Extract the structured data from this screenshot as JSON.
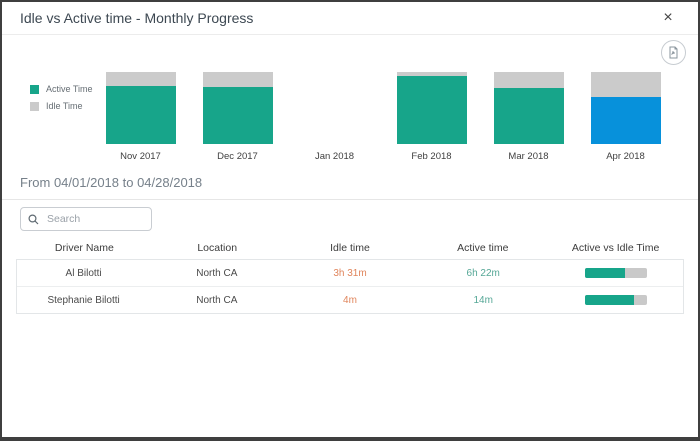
{
  "dialog": {
    "title": "Idle vs Active time - Monthly Progress",
    "close_label": "×"
  },
  "chart_data": {
    "type": "bar",
    "stacked": true,
    "unit": "percent",
    "categories": [
      "Nov 2017",
      "Dec 2017",
      "Jan 2018",
      "Feb 2018",
      "Mar 2018",
      "Apr 2018"
    ],
    "series": [
      {
        "name": "Active Time",
        "color": "#17a58a",
        "values": [
          81,
          79,
          0,
          94,
          78,
          65
        ]
      },
      {
        "name": "Idle Time",
        "color": "#cbcbcb",
        "values": [
          19,
          21,
          0,
          6,
          22,
          35
        ]
      }
    ],
    "selected_category": "Apr 2018",
    "selected_color": "#0791db",
    "legend_position": "left",
    "note": "Jan 2018 has no data (no bar drawn)"
  },
  "period": {
    "label": "From 04/01/2018 to 04/28/2018"
  },
  "search": {
    "placeholder": "Search"
  },
  "table": {
    "columns": [
      "Driver Name",
      "Location",
      "Idle time",
      "Active time",
      "Active vs Idle Time"
    ],
    "rows": [
      {
        "driver": "Al Bilotti",
        "location": "North CA",
        "idle": "3h 31m",
        "active": "6h 22m",
        "active_pct": 64
      },
      {
        "driver": "Stephanie Bilotti",
        "location": "North CA",
        "idle": "4m",
        "active": "14m",
        "active_pct": 78
      }
    ]
  },
  "colors": {
    "active_teal": "#17a58a",
    "idle_gray": "#cbcbcb",
    "selected_blue": "#0791db",
    "idle_value_text": "#e0855c",
    "active_value_text": "#55a796",
    "progress_track": "#c9c9c9"
  }
}
